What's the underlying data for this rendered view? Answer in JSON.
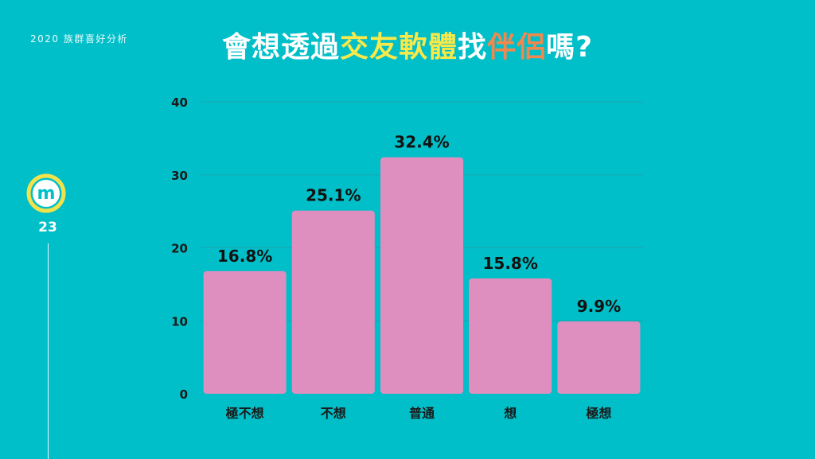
{
  "header": {
    "tag": "2020 族群喜好分析",
    "title_parts": [
      {
        "text": "會想透過",
        "color": "#ffffff"
      },
      {
        "text": "交友軟體",
        "color": "#f7e94a"
      },
      {
        "text": "找",
        "color": "#ffffff"
      },
      {
        "text": "伴侶",
        "color": "#f0884f"
      },
      {
        "text": "嗎?",
        "color": "#ffffff"
      }
    ]
  },
  "sidebar": {
    "logo_letter": "m",
    "page_number": "23"
  },
  "colors": {
    "background": "#00bfc8",
    "bar": "#df8fbf",
    "gridline": "#1ba6ad",
    "logo_ring": "#f2e24b"
  },
  "chart_data": {
    "type": "bar",
    "categories": [
      "極不想",
      "不想",
      "普通",
      "想",
      "極想"
    ],
    "values": [
      16.8,
      25.1,
      32.4,
      15.8,
      9.9
    ],
    "data_labels": [
      "16.8%",
      "25.1%",
      "32.4%",
      "15.8%",
      "9.9%"
    ],
    "yticks": [
      0,
      10,
      20,
      30,
      40
    ],
    "ylim": [
      0,
      40
    ],
    "grid": true,
    "legend": "none"
  }
}
